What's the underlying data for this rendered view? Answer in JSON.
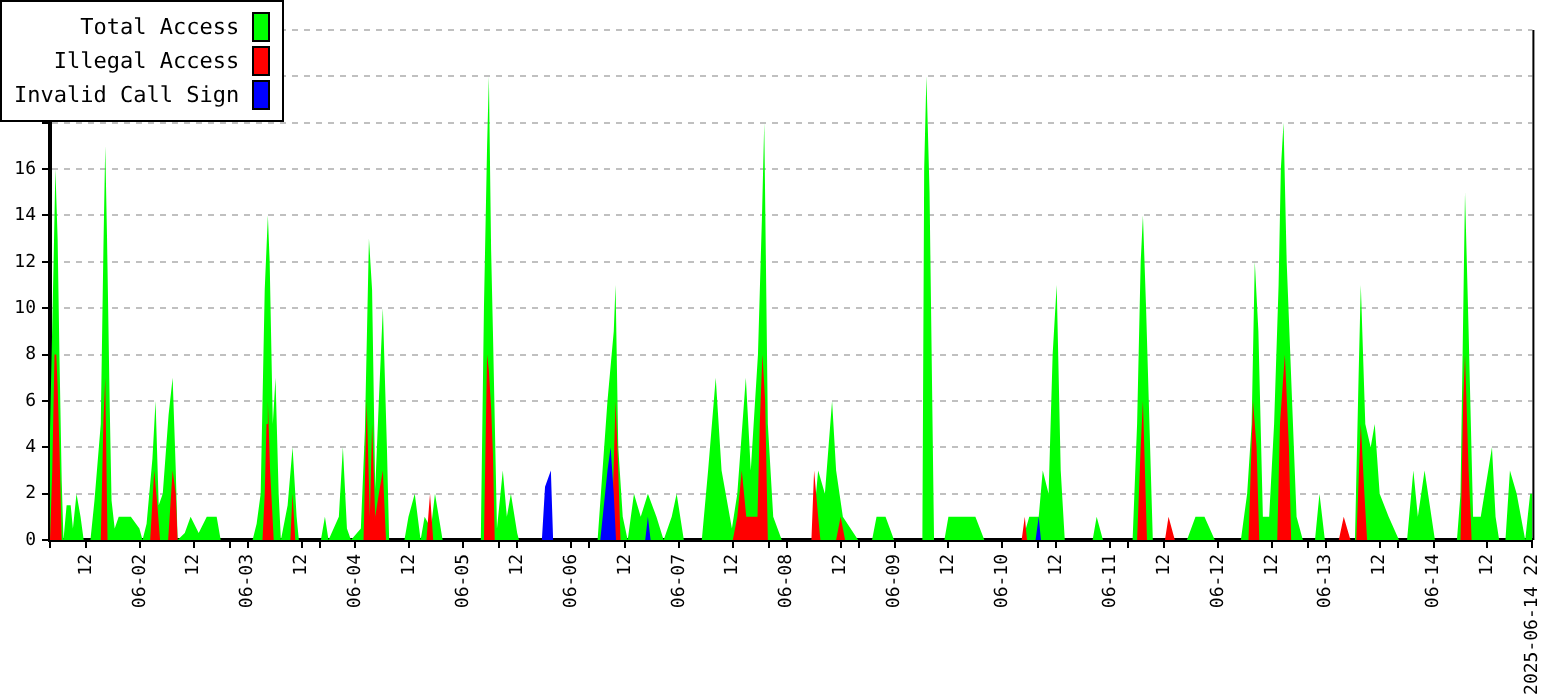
{
  "chart_data": {
    "type": "area",
    "legend": "top left",
    "grid": "y",
    "xlim": [
      "2025-06-01T04:00",
      "2025-06-14T22:00"
    ],
    "ylim": [
      0,
      22
    ],
    "yticks": [
      0,
      2,
      4,
      6,
      8,
      10,
      12,
      14,
      16,
      {
        "value": 18,
        "label": null
      },
      {
        "value": 20,
        "label": null
      },
      {
        "value": 22,
        "label": null
      }
    ],
    "xticks": [
      {
        "value": "2025-06-01T04:00",
        "label": null
      },
      {
        "value": "2025-06-01T12:00",
        "label": "12"
      },
      {
        "value": "2025-06-02",
        "label": "06-02"
      },
      {
        "value": "2025-06-02T12:00",
        "label": "12"
      },
      {
        "value": "2025-06-02T20:00",
        "label": null
      },
      {
        "value": "2025-06-03",
        "label": "06-03"
      },
      {
        "value": "2025-06-03T12:00",
        "label": "12"
      },
      {
        "value": "2025-06-03T16:00",
        "label": null
      },
      {
        "value": "2025-06-04",
        "label": "06-04"
      },
      {
        "value": "2025-06-04T12:00",
        "label": "12"
      },
      {
        "value": "2025-06-05",
        "label": "06-05"
      },
      {
        "value": "2025-06-05T08:00",
        "label": null
      },
      {
        "value": "2025-06-05T12:00",
        "label": "12"
      },
      {
        "value": "2025-06-06",
        "label": "06-06"
      },
      {
        "value": "2025-06-06T04:00",
        "label": null
      },
      {
        "value": "2025-06-06T12:00",
        "label": "12"
      },
      {
        "value": "2025-06-07",
        "label": "06-07"
      },
      {
        "value": "2025-06-07T12:00",
        "label": "12"
      },
      {
        "value": "2025-06-07T20:00",
        "label": null
      },
      {
        "value": "2025-06-08",
        "label": "06-08"
      },
      {
        "value": "2025-06-08T12:00",
        "label": "12"
      },
      {
        "value": "2025-06-08T16:00",
        "label": null
      },
      {
        "value": "2025-06-09",
        "label": "06-09"
      },
      {
        "value": "2025-06-09T12:00",
        "label": "12"
      },
      {
        "value": "2025-06-10",
        "label": "06-10"
      },
      {
        "value": "2025-06-10T08:00",
        "label": null
      },
      {
        "value": "2025-06-10T12:00",
        "label": "12"
      },
      {
        "value": "2025-06-11",
        "label": "06-11"
      },
      {
        "value": "2025-06-11T04:00",
        "label": null
      },
      {
        "value": "2025-06-11T12:00",
        "label": "12"
      },
      {
        "value": "2025-06-12",
        "label": "06-12"
      },
      {
        "value": "2025-06-12T12:00",
        "label": "12"
      },
      {
        "value": "2025-06-12T20:00",
        "label": null
      },
      {
        "value": "2025-06-13",
        "label": "06-13"
      },
      {
        "value": "2025-06-13T12:00",
        "label": "12"
      },
      {
        "value": "2025-06-13T16:00",
        "label": null
      },
      {
        "value": "2025-06-14",
        "label": "06-14"
      },
      {
        "value": "2025-06-14T12:00",
        "label": "12"
      },
      {
        "value": "2025-06-14T22:00",
        "label": "2025-06-14 22"
      }
    ],
    "series": [
      {
        "name": "Total Access",
        "color": "#00ff00",
        "x": [
          "2025-06-01T04:00",
          "2025-06-01T04:48",
          "2025-06-01T05:12",
          "2025-06-01T05:42",
          "2025-06-01T06:06",
          "2025-06-01T06:36",
          "2025-06-01T07:00",
          "2025-06-01T07:42",
          "2025-06-01T08:36",
          "2025-06-01T09:06",
          "2025-06-01T09:54",
          "2025-06-01T10:48",
          "2025-06-01T11:30",
          "2025-06-01T13:00",
          "2025-06-01T13:54",
          "2025-06-01T15:18",
          "2025-06-01T15:54",
          "2025-06-01T16:18",
          "2025-06-01T16:42",
          "2025-06-01T17:18",
          "2025-06-01T17:42",
          "2025-06-01T18:24",
          "2025-06-01T19:18",
          "2025-06-01T22:00",
          "2025-06-01T23:54",
          "2025-06-02T00:36",
          "2025-06-02T01:30",
          "2025-06-02T02:48",
          "2025-06-02T03:30",
          "2025-06-02T04:12",
          "2025-06-02T05:06",
          "2025-06-02T06:24",
          "2025-06-02T07:18",
          "2025-06-02T08:00",
          "2025-06-02T08:24",
          "2025-06-02T10:00",
          "2025-06-02T11:18",
          "2025-06-02T13:06",
          "2025-06-02T14:54",
          "2025-06-02T17:06",
          "2025-06-02T18:00",
          "2025-06-03T01:06",
          "2025-06-03T02:00",
          "2025-06-03T02:54",
          "2025-06-03T03:48",
          "2025-06-03T04:30",
          "2025-06-03T04:54",
          "2025-06-03T05:36",
          "2025-06-03T06:12",
          "2025-06-03T06:54",
          "2025-06-03T07:24",
          "2025-06-03T08:54",
          "2025-06-03T10:00",
          "2025-06-03T10:54",
          "2025-06-03T11:24",
          "2025-06-03T16:18",
          "2025-06-03T17:12",
          "2025-06-03T18:00",
          "2025-06-03T20:18",
          "2025-06-03T21:12",
          "2025-06-03T22:06",
          "2025-06-03T23:00",
          "2025-06-04T01:12",
          "2025-06-04T02:06",
          "2025-06-04T03:00",
          "2025-06-04T03:42",
          "2025-06-04T04:24",
          "2025-06-04T05:12",
          "2025-06-04T06:06",
          "2025-06-04T07:00",
          "2025-06-04T07:30",
          "2025-06-04T10:54",
          "2025-06-04T11:48",
          "2025-06-04T13:12",
          "2025-06-04T14:30",
          "2025-06-04T15:24",
          "2025-06-04T16:48",
          "2025-06-04T17:42",
          "2025-06-04T19:24",
          "2025-06-05T03:54",
          "2025-06-05T04:36",
          "2025-06-05T05:18",
          "2025-06-05T05:42",
          "2025-06-05T06:12",
          "2025-06-05T06:36",
          "2025-06-05T07:30",
          "2025-06-05T08:48",
          "2025-06-05T09:42",
          "2025-06-05T10:36",
          "2025-06-05T12:00",
          "2025-06-05T12:24",
          "2025-06-06T05:54",
          "2025-06-06T07:00",
          "2025-06-06T08:06",
          "2025-06-06T09:30",
          "2025-06-06T09:54",
          "2025-06-06T10:30",
          "2025-06-06T11:30",
          "2025-06-06T12:36",
          "2025-06-06T14:00",
          "2025-06-06T15:30",
          "2025-06-06T17:06",
          "2025-06-06T19:00",
          "2025-06-06T20:36",
          "2025-06-06T22:24",
          "2025-06-06T23:30",
          "2025-06-07T01:06",
          "2025-06-07T05:06",
          "2025-06-07T06:30",
          "2025-06-07T08:12",
          "2025-06-07T09:30",
          "2025-06-07T11:48",
          "2025-06-07T13:00",
          "2025-06-07T14:54",
          "2025-06-07T16:00",
          "2025-06-07T17:36",
          "2025-06-07T18:30",
          "2025-06-07T19:00",
          "2025-06-07T19:48",
          "2025-06-07T21:00",
          "2025-06-07T22:54",
          "2025-06-08T05:36",
          "2025-06-08T07:00",
          "2025-06-08T08:30",
          "2025-06-08T10:06",
          "2025-06-08T11:00",
          "2025-06-08T12:30",
          "2025-06-08T15:54",
          "2025-06-08T19:00",
          "2025-06-08T20:00",
          "2025-06-08T22:00",
          "2025-06-08T23:54",
          "2025-06-09T06:12",
          "2025-06-09T06:36",
          "2025-06-09T07:06",
          "2025-06-09T07:48",
          "2025-06-09T08:48",
          "2025-06-09T11:06",
          "2025-06-09T12:00",
          "2025-06-09T14:00",
          "2025-06-09T16:00",
          "2025-06-09T18:00",
          "2025-06-09T20:00",
          "2025-06-10T04:30",
          "2025-06-10T06:00",
          "2025-06-10T08:06",
          "2025-06-10T09:00",
          "2025-06-10T10:18",
          "2025-06-10T11:12",
          "2025-06-10T12:06",
          "2025-06-10T13:00",
          "2025-06-10T13:54",
          "2025-06-10T20:06",
          "2025-06-10T21:00",
          "2025-06-10T22:24",
          "2025-06-11T05:00",
          "2025-06-11T06:00",
          "2025-06-11T06:48",
          "2025-06-11T07:18",
          "2025-06-11T08:00",
          "2025-06-11T09:30",
          "2025-06-11T17:06",
          "2025-06-11T19:00",
          "2025-06-11T21:00",
          "2025-06-11T23:18",
          "2025-06-12T05:06",
          "2025-06-12T06:30",
          "2025-06-12T07:30",
          "2025-06-12T08:12",
          "2025-06-12T09:00",
          "2025-06-12T10:00",
          "2025-06-12T11:24",
          "2025-06-12T12:30",
          "2025-06-12T13:30",
          "2025-06-12T14:00",
          "2025-06-12T14:36",
          "2025-06-12T15:18",
          "2025-06-12T16:30",
          "2025-06-12T17:30",
          "2025-06-12T18:54",
          "2025-06-12T21:36",
          "2025-06-12T22:36",
          "2025-06-12T23:48",
          "2025-06-13T06:30",
          "2025-06-13T07:18",
          "2025-06-13T07:48",
          "2025-06-13T08:48",
          "2025-06-13T10:00",
          "2025-06-13T10:54",
          "2025-06-13T12:00",
          "2025-06-13T14:00",
          "2025-06-13T16:18",
          "2025-06-13T18:06",
          "2025-06-13T19:30",
          "2025-06-13T20:30",
          "2025-06-13T22:00",
          "2025-06-14T00:18",
          "2025-06-14T05:12",
          "2025-06-14T06:00",
          "2025-06-14T07:00",
          "2025-06-14T07:48",
          "2025-06-14T08:48",
          "2025-06-14T10:30",
          "2025-06-14T13:00",
          "2025-06-14T13:48",
          "2025-06-14T14:36",
          "2025-06-14T16:00",
          "2025-06-14T17:00",
          "2025-06-14T18:30",
          "2025-06-14T20:24",
          "2025-06-14T21:30",
          "2025-06-14T22:00"
        ],
        "values": [
          4.7,
          12,
          16,
          13,
          8,
          2.6,
          0,
          1.5,
          1.5,
          0.5,
          2,
          1,
          0,
          0,
          1.7,
          5,
          12.7,
          17,
          13,
          5.7,
          1.7,
          0.5,
          1,
          1,
          0.5,
          0,
          0.7,
          3.5,
          6,
          1.5,
          2,
          5.4,
          7,
          3,
          0,
          0.3,
          1,
          0.3,
          1,
          1,
          0,
          0,
          0.7,
          2,
          10.8,
          14,
          12,
          5,
          7,
          2,
          0,
          1.5,
          4,
          1,
          0,
          0,
          1,
          0,
          1,
          4,
          0.5,
          0,
          0.5,
          4.7,
          13,
          10.8,
          2.2,
          6,
          10,
          4,
          0,
          0,
          1,
          2,
          0,
          1,
          0.5,
          2,
          0,
          0,
          10,
          17,
          20,
          12.5,
          9,
          0.5,
          3,
          1,
          2,
          0.3,
          0,
          0,
          3,
          6,
          9,
          11,
          4,
          1,
          0,
          2,
          1,
          2,
          1,
          0,
          1,
          2,
          0,
          0,
          3,
          7,
          3,
          0.5,
          2,
          7,
          3,
          8,
          14,
          18,
          5,
          1,
          0,
          0,
          3,
          2,
          6,
          3,
          1,
          0,
          0,
          1,
          1,
          0,
          0,
          16,
          20,
          15,
          0,
          0,
          1,
          1,
          1,
          1,
          0,
          0,
          1,
          1,
          3,
          2,
          8,
          11,
          3,
          0,
          0,
          1,
          0,
          0,
          5,
          12,
          14,
          10,
          0,
          0,
          1,
          1,
          0,
          0,
          2,
          5,
          12,
          9,
          1,
          1,
          5,
          11,
          16,
          18,
          12,
          6,
          1,
          0,
          0,
          2,
          0,
          0,
          7,
          11,
          5,
          4,
          5,
          2,
          1,
          0,
          0,
          3,
          1,
          3,
          0,
          0,
          2,
          15,
          9,
          1,
          1,
          4,
          1,
          0,
          0,
          3,
          2,
          0,
          2,
          2
        ]
      },
      {
        "name": "Illegal Access",
        "color": "#ff0000",
        "x": [
          "2025-06-01T04:00",
          "2025-06-01T04:30",
          "2025-06-01T05:00",
          "2025-06-01T05:24",
          "2025-06-01T05:42",
          "2025-06-01T06:06",
          "2025-06-01T06:36",
          "2025-06-01T15:18",
          "2025-06-01T15:54",
          "2025-06-01T16:18",
          "2025-06-01T16:48",
          "2025-06-02T02:18",
          "2025-06-02T03:12",
          "2025-06-02T03:54",
          "2025-06-02T04:30",
          "2025-06-02T06:18",
          "2025-06-02T07:18",
          "2025-06-02T08:00",
          "2025-06-02T08:24",
          "2025-06-03T03:18",
          "2025-06-03T03:48",
          "2025-06-03T04:12",
          "2025-06-03T04:30",
          "2025-06-03T05:00",
          "2025-06-03T05:48",
          "2025-06-03T09:30",
          "2025-06-03T10:00",
          "2025-06-03T10:36",
          "2025-06-04T01:48",
          "2025-06-04T02:30",
          "2025-06-04T03:12",
          "2025-06-04T03:42",
          "2025-06-04T04:24",
          "2025-06-04T05:12",
          "2025-06-04T06:06",
          "2025-06-04T06:48",
          "2025-06-04T15:48",
          "2025-06-04T16:36",
          "2025-06-04T17:18",
          "2025-06-05T04:36",
          "2025-06-05T05:18",
          "2025-06-05T05:42",
          "2025-06-05T06:12",
          "2025-06-05T06:36",
          "2025-06-05T07:00",
          "2025-06-06T09:00",
          "2025-06-06T09:54",
          "2025-06-06T10:30",
          "2025-06-06T11:00",
          "2025-06-07T12:00",
          "2025-06-07T13:00",
          "2025-06-07T14:00",
          "2025-06-07T15:00",
          "2025-06-07T17:30",
          "2025-06-07T18:00",
          "2025-06-07T18:36",
          "2025-06-07T19:12",
          "2025-06-07T19:48",
          "2025-06-08T05:30",
          "2025-06-08T06:06",
          "2025-06-08T07:00",
          "2025-06-08T07:30",
          "2025-06-08T11:00",
          "2025-06-08T12:00",
          "2025-06-08T13:00",
          "2025-06-10T04:18",
          "2025-06-10T05:00",
          "2025-06-10T05:30",
          "2025-06-11T06:00",
          "2025-06-11T06:48",
          "2025-06-11T07:18",
          "2025-06-11T08:12",
          "2025-06-11T12:12",
          "2025-06-11T13:00",
          "2025-06-11T14:24",
          "2025-06-12T06:48",
          "2025-06-12T07:48",
          "2025-06-12T08:36",
          "2025-06-12T09:12",
          "2025-06-12T13:12",
          "2025-06-12T13:48",
          "2025-06-12T14:54",
          "2025-06-12T15:48",
          "2025-06-12T16:18",
          "2025-06-13T02:54",
          "2025-06-13T04:00",
          "2025-06-13T05:30",
          "2025-06-13T06:48",
          "2025-06-13T07:48",
          "2025-06-13T08:36",
          "2025-06-13T09:12",
          "2025-06-14T06:00",
          "2025-06-14T06:36",
          "2025-06-14T07:00",
          "2025-06-14T07:48",
          "2025-06-14T08:30"
        ],
        "values": [
          0,
          3,
          8,
          8,
          6.6,
          4,
          0,
          0,
          5.2,
          7,
          0,
          0,
          3,
          1.5,
          0,
          0,
          3,
          2,
          0,
          0,
          2,
          5,
          6,
          3,
          0,
          0,
          2,
          0,
          0,
          6,
          1,
          5,
          1,
          2,
          3,
          0,
          0,
          2,
          0,
          0,
          8,
          7.3,
          5.7,
          3.7,
          0,
          0,
          6,
          3,
          0,
          0,
          1,
          3,
          1,
          1,
          5,
          8,
          6,
          0,
          0,
          3,
          1,
          0,
          0,
          1,
          0,
          0,
          1,
          0,
          0,
          4,
          6,
          0,
          0,
          1,
          0,
          0,
          6,
          4,
          0,
          0,
          5,
          8,
          4,
          0,
          0,
          1,
          0,
          0,
          5,
          2,
          0,
          0,
          6,
          8,
          3,
          0
        ]
      },
      {
        "name": "Invalid Call Sign",
        "color": "#0000ff",
        "x": [
          "2025-06-05T17:30",
          "2025-06-05T18:12",
          "2025-06-05T19:30",
          "2025-06-05T20:00",
          "2025-06-06T06:30",
          "2025-06-06T08:06",
          "2025-06-06T08:48",
          "2025-06-06T09:30",
          "2025-06-06T10:00",
          "2025-06-06T16:30",
          "2025-06-06T17:06",
          "2025-06-06T17:42",
          "2025-06-10T07:24",
          "2025-06-10T08:06",
          "2025-06-10T08:36"
        ],
        "values": [
          0,
          2.3,
          3,
          0,
          0,
          3,
          4,
          2,
          0,
          0,
          1,
          0,
          0,
          1,
          0
        ]
      }
    ]
  }
}
